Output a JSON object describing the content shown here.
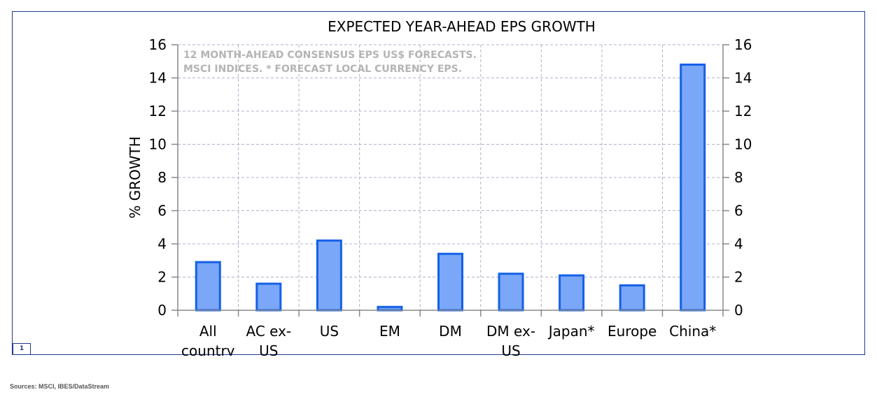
{
  "colors": {
    "bar_fill": "#7aa7f7",
    "bar_stroke": "#1560e8",
    "grid": "#b0b0cc",
    "axis": "#888888",
    "annotation": "#b4b4b4",
    "frame": "#1f3a93"
  },
  "page_badge": "1",
  "sources": "Sources: MSCI, IBES/DataStream",
  "chart_data": {
    "type": "bar",
    "title": "EXPECTED YEAR-AHEAD EPS GROWTH",
    "ylabel": "% GROWTH",
    "xlabel": "",
    "ylim": [
      0,
      16
    ],
    "yticks": [
      "0",
      "2",
      "4",
      "6",
      "8",
      "10",
      "12",
      "14",
      "16"
    ],
    "y2ticks": [
      "0",
      "2",
      "4",
      "6",
      "8",
      "10",
      "12",
      "14",
      "16"
    ],
    "grid": true,
    "legend": "none",
    "annotations": [
      "12 MONTH-AHEAD CONSENSUS EPS US$ FORECASTS.",
      "MSCI INDICES.  * FORECAST LOCAL CURRENCY EPS."
    ],
    "categories": [
      [
        "All",
        "country"
      ],
      [
        "AC ex-",
        "US"
      ],
      [
        "US"
      ],
      [
        "EM"
      ],
      [
        "DM"
      ],
      [
        "DM ex-",
        "US"
      ],
      [
        "Japan*"
      ],
      [
        "Europe"
      ],
      [
        "China*"
      ]
    ],
    "values": [
      2.9,
      1.6,
      4.2,
      0.2,
      3.4,
      2.2,
      2.1,
      1.5,
      14.8
    ]
  }
}
